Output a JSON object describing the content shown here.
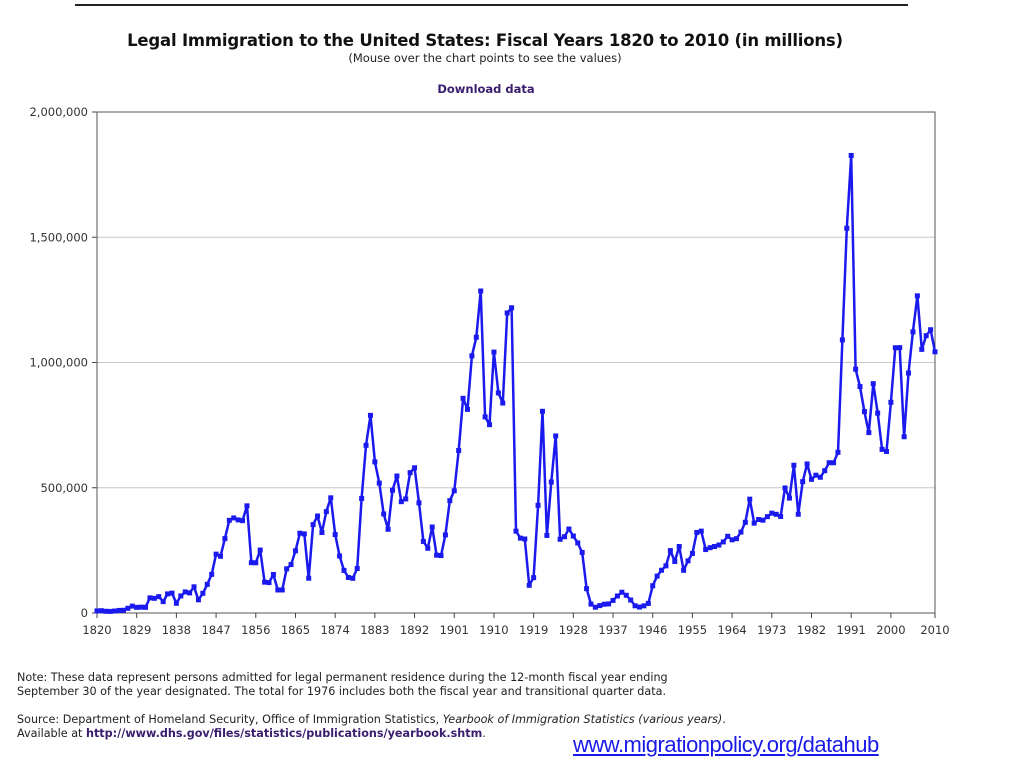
{
  "header": {
    "title": "Legal Immigration to the United States: Fiscal Years 1820 to 2010 (in millions)",
    "subtitle": "(Mouse over the chart points to see the values)",
    "download_label": "Download data"
  },
  "footer": {
    "note_line1": "Note: These data represent persons admitted for legal permanent residence during the 12-month fiscal year ending",
    "note_line2": "September 30 of the year designated. The total for 1976 includes both the fiscal year and transitional quarter data.",
    "source_prefix": "Source: Department of Homeland Security, Office of Immigration Statistics, ",
    "source_italic": "Yearbook of Immigration Statistics (various years)",
    "source_suffix": ".",
    "available_prefix": "Available at ",
    "available_link": "http://www.dhs.gov/files/statistics/publications/yearbook.shtm",
    "available_suffix": ".",
    "watermark_link": "www.migrationpolicy.org/datahub"
  },
  "chart_data": {
    "type": "line",
    "title": "Legal Immigration to the United States: Fiscal Years 1820 to 2010 (in millions)",
    "xlabel": "",
    "ylabel": "",
    "xlim": [
      1820,
      2010
    ],
    "ylim": [
      0,
      2000000
    ],
    "grid": true,
    "line_color": "#1a1aee",
    "x_tick_labels": [
      "1820",
      "1829",
      "1838",
      "1847",
      "1856",
      "1865",
      "1874",
      "1883",
      "1892",
      "1901",
      "1910",
      "1919",
      "1928",
      "1937",
      "1946",
      "1955",
      "1964",
      "1973",
      "1982",
      "1991",
      "2000",
      "2010"
    ],
    "y_tick_labels": [
      "0",
      "500,000",
      "1,000,000",
      "1,500,000",
      "2,000,000"
    ],
    "y_ticks": [
      0,
      500000,
      1000000,
      1500000,
      2000000
    ],
    "start_year": 1820,
    "values": [
      8385,
      9127,
      6911,
      6354,
      7912,
      10199,
      10837,
      18875,
      27382,
      22520,
      23322,
      22633,
      60482,
      58640,
      65365,
      45374,
      76242,
      79340,
      38914,
      68069,
      84066,
      80289,
      104565,
      52496,
      78615,
      114371,
      154416,
      234968,
      226527,
      297024,
      369980,
      379466,
      371603,
      368645,
      427833,
      200877,
      200436,
      251306,
      123126,
      121282,
      153640,
      91918,
      91985,
      176282,
      193418,
      248120,
      318568,
      315722,
      138840,
      352768,
      387203,
      321350,
      404806,
      459803,
      313339,
      227498,
      169986,
      141857,
      138469,
      177826,
      457257,
      669431,
      788992,
      603322,
      518592,
      395346,
      334203,
      490109,
      546889,
      444427,
      455302,
      560319,
      579663,
      439730,
      285631,
      258536,
      343267,
      230832,
      229299,
      311715,
      448572,
      487918,
      648743,
      857046,
      812870,
      1026499,
      1100735,
      1285349,
      782870,
      751786,
      1041570,
      878587,
      838172,
      1197892,
      1218480,
      326700,
      298826,
      295403,
      110618,
      141132,
      430001,
      805228,
      309556,
      522919,
      706896,
      294314,
      304488,
      335175,
      307255,
      279678,
      241700,
      97139,
      35576,
      23068,
      29470,
      34956,
      36329,
      50244,
      67895,
      82998,
      70756,
      51776,
      28781,
      23725,
      28551,
      38119,
      108721,
      147292,
      170570,
      188317,
      249187,
      205717,
      265520,
      170434,
      208177,
      237790,
      321625,
      326867,
      253265,
      260686,
      265398,
      271344,
      283763,
      306260,
      292248,
      296697,
      323040,
      361972,
      454448,
      358579,
      373326,
      370478,
      384685,
      398515,
      393919,
      385378,
      499093,
      458755,
      589810,
      394244,
      524295,
      595014,
      533624,
      550052,
      541811,
      568149,
      600027,
      599889,
      641346,
      1090172,
      1535872,
      1826595,
      973445,
      903916,
      803993,
      720177,
      915560,
      797847,
      653206,
      644787,
      841002,
      1058902,
      1059356,
      703542,
      957883,
      1122257,
      1266129,
      1052415,
      1107126,
      1130818,
      1042625
    ]
  }
}
